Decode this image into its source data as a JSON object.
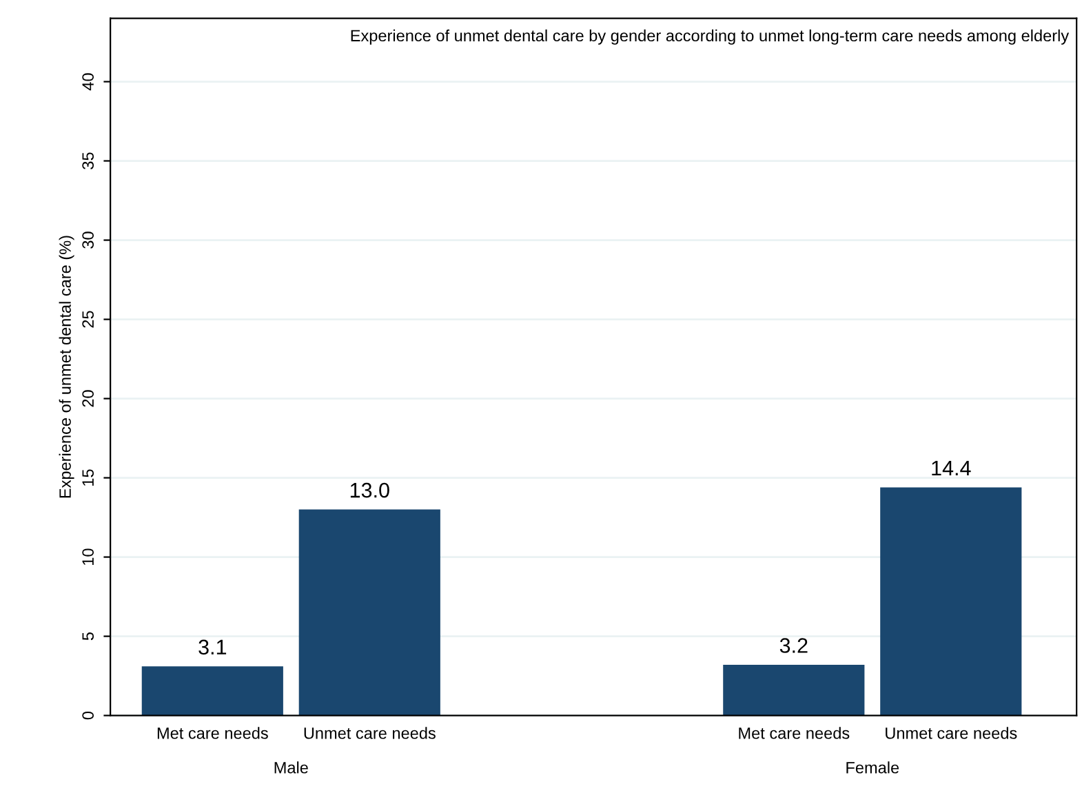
{
  "chart_data": {
    "type": "bar",
    "title": "Experience of unmet dental care by gender according to unmet long-term care needs among elderly",
    "ylabel": "Experience of unmet dental care (%)",
    "categories": [
      "Met care needs",
      "Unmet care needs",
      "Met care needs",
      "Unmet care needs"
    ],
    "values": [
      3.1,
      13.0,
      3.2,
      14.4
    ],
    "value_labels": [
      "3.1",
      "13.0",
      "3.2",
      "14.4"
    ],
    "color": "#1a476f",
    "annotations": [
      "Male",
      "Female"
    ],
    "ylim": [
      0,
      44
    ],
    "yticks": [
      0,
      5,
      10,
      15,
      20,
      25,
      30,
      35,
      40
    ],
    "grid": "y",
    "legend": false
  }
}
